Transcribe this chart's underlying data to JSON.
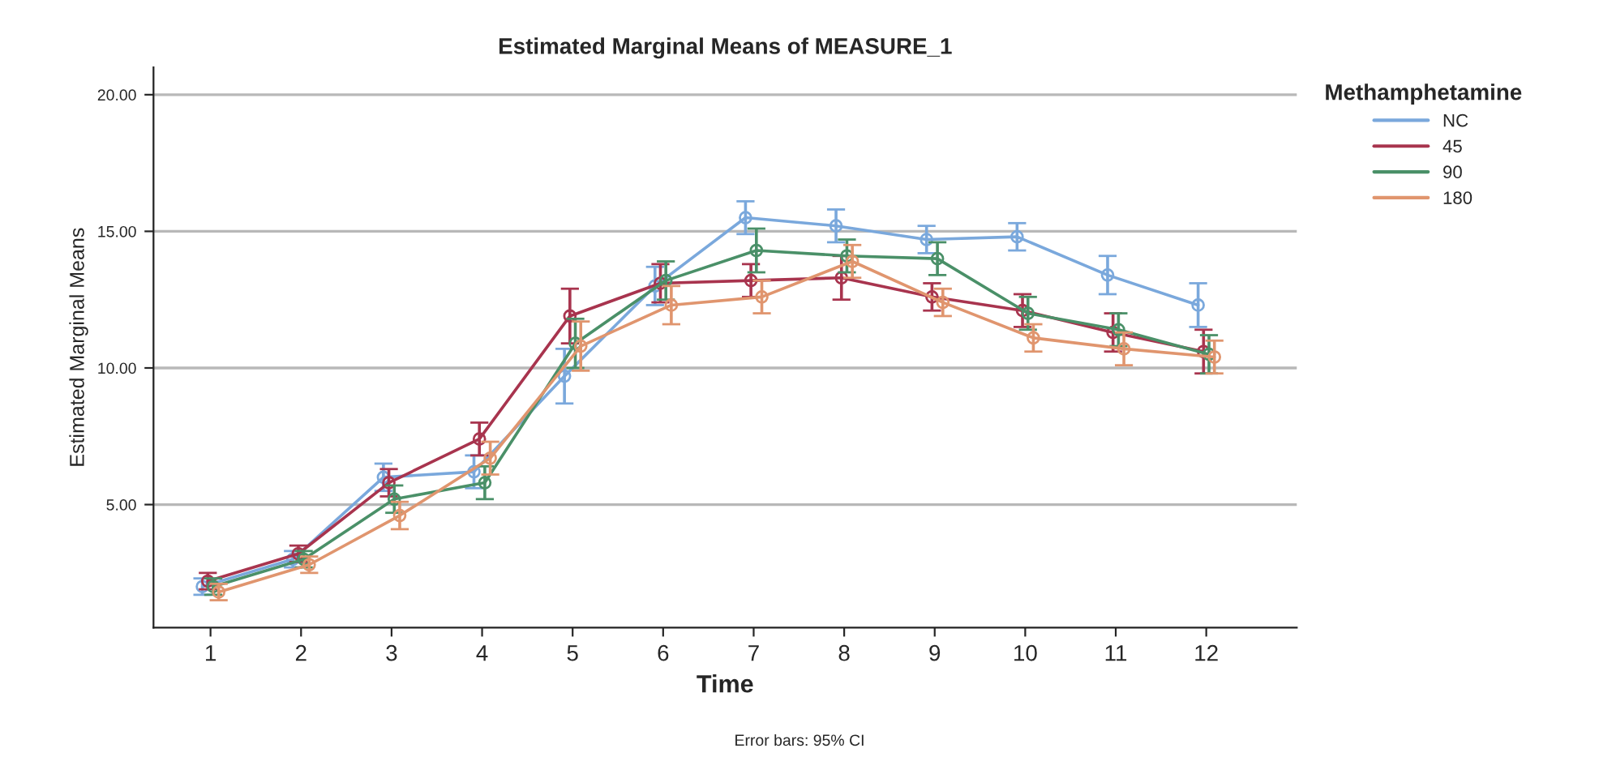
{
  "chart_data": {
    "type": "line",
    "title": "Estimated Marginal Means of MEASURE_1",
    "xlabel": "Time",
    "ylabel": "Estimated Marginal Means",
    "legend_title": "Methamphetamine",
    "annotations": [
      "Error bars: 95% CI"
    ],
    "categories": [
      "1",
      "2",
      "3",
      "4",
      "5",
      "6",
      "7",
      "8",
      "9",
      "10",
      "11",
      "12"
    ],
    "ylim": [
      0.5,
      21
    ],
    "yticks": [
      {
        "value": 5,
        "label": "5.00"
      },
      {
        "value": 10,
        "label": "10.00"
      },
      {
        "value": 15,
        "label": "15.00"
      },
      {
        "value": 20,
        "label": "20.00"
      }
    ],
    "grid": "y",
    "legend": "top right",
    "marker": "circle",
    "line_style": "solid",
    "series": [
      {
        "name": "NC",
        "color": "#7aa8dc",
        "values": [
          2.0,
          3.0,
          6.0,
          6.2,
          9.7,
          13.0,
          15.5,
          15.2,
          14.7,
          14.8,
          13.4,
          12.3
        ],
        "errors": [
          0.3,
          0.3,
          0.5,
          0.6,
          1.0,
          0.7,
          0.6,
          0.6,
          0.5,
          0.5,
          0.7,
          0.8
        ]
      },
      {
        "name": "45",
        "color": "#a8344e",
        "values": [
          2.2,
          3.2,
          5.8,
          7.4,
          11.9,
          13.1,
          13.2,
          13.3,
          12.6,
          12.1,
          11.3,
          10.6
        ],
        "errors": [
          0.3,
          0.3,
          0.5,
          0.6,
          1.0,
          0.7,
          0.6,
          0.8,
          0.5,
          0.6,
          0.7,
          0.8
        ]
      },
      {
        "name": "90",
        "color": "#4a9068",
        "values": [
          2.0,
          3.0,
          5.2,
          5.8,
          10.9,
          13.2,
          14.3,
          14.1,
          14.0,
          12.0,
          11.4,
          10.5
        ],
        "errors": [
          0.3,
          0.3,
          0.5,
          0.6,
          0.9,
          0.7,
          0.8,
          0.6,
          0.6,
          0.6,
          0.6,
          0.7
        ]
      },
      {
        "name": "180",
        "color": "#e0956e",
        "values": [
          1.8,
          2.8,
          4.6,
          6.7,
          10.8,
          12.3,
          12.6,
          13.9,
          12.4,
          11.1,
          10.7,
          10.4
        ],
        "errors": [
          0.3,
          0.3,
          0.5,
          0.6,
          0.9,
          0.7,
          0.6,
          0.6,
          0.5,
          0.5,
          0.6,
          0.6
        ]
      }
    ]
  }
}
